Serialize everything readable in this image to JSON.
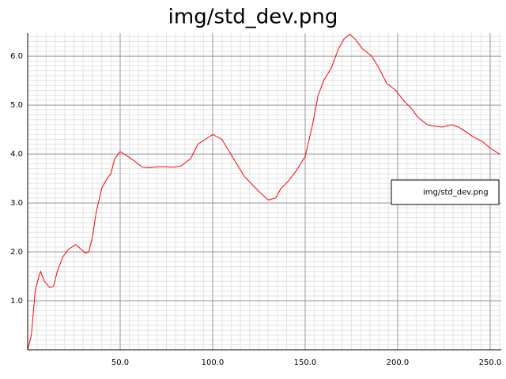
{
  "chart_data": {
    "type": "line",
    "title": "img/std_dev.png",
    "series": [
      {
        "name": "img/std_dev.png",
        "color": "#ff0000",
        "x": [
          0,
          2,
          4,
          6,
          7,
          9,
          12,
          14,
          16,
          19,
          22,
          26,
          29,
          31,
          33,
          35,
          37,
          40,
          43,
          45,
          47,
          50,
          53,
          58,
          62,
          66,
          70,
          75,
          79,
          83,
          88,
          92,
          96,
          100,
          105,
          109,
          113,
          117,
          122,
          126,
          130,
          134,
          137,
          141,
          145,
          150,
          154,
          157,
          160,
          164,
          168,
          171,
          174,
          177,
          181,
          186,
          190,
          194,
          199,
          203,
          207,
          211,
          216,
          220,
          224,
          229,
          233,
          237,
          241,
          246,
          250,
          255
        ],
        "values": [
          0,
          0.3,
          1.18,
          1.5,
          1.6,
          1.4,
          1.27,
          1.3,
          1.6,
          1.9,
          2.05,
          2.15,
          2.05,
          1.98,
          2.0,
          2.3,
          2.8,
          3.3,
          3.5,
          3.6,
          3.9,
          4.05,
          3.98,
          3.85,
          3.73,
          3.72,
          3.74,
          3.74,
          3.73,
          3.76,
          3.9,
          4.2,
          4.3,
          4.4,
          4.3,
          4.05,
          3.8,
          3.55,
          3.35,
          3.2,
          3.06,
          3.1,
          3.3,
          3.45,
          3.65,
          3.95,
          4.6,
          5.2,
          5.5,
          5.75,
          6.15,
          6.35,
          6.45,
          6.35,
          6.15,
          6.0,
          5.75,
          5.45,
          5.3,
          5.1,
          4.95,
          4.75,
          4.6,
          4.57,
          4.55,
          4.6,
          4.55,
          4.45,
          4.35,
          4.25,
          4.12,
          4.0
        ]
      }
    ],
    "xlim": [
      0,
      256
    ],
    "ylim": [
      0,
      6.47
    ],
    "xticks": [
      {
        "value": 50,
        "label": "50.0"
      },
      {
        "value": 100,
        "label": "100.0"
      },
      {
        "value": 150,
        "label": "150.0"
      },
      {
        "value": 200,
        "label": "200.0"
      },
      {
        "value": 250,
        "label": "250.0"
      }
    ],
    "yticks": [
      {
        "value": 1,
        "label": "1.0"
      },
      {
        "value": 2,
        "label": "2.0"
      },
      {
        "value": 3,
        "label": "3.0"
      },
      {
        "value": 4,
        "label": "4.0"
      },
      {
        "value": 5,
        "label": "5.0"
      },
      {
        "value": 6,
        "label": "6.0"
      }
    ],
    "grid": true,
    "legend": "right"
  }
}
